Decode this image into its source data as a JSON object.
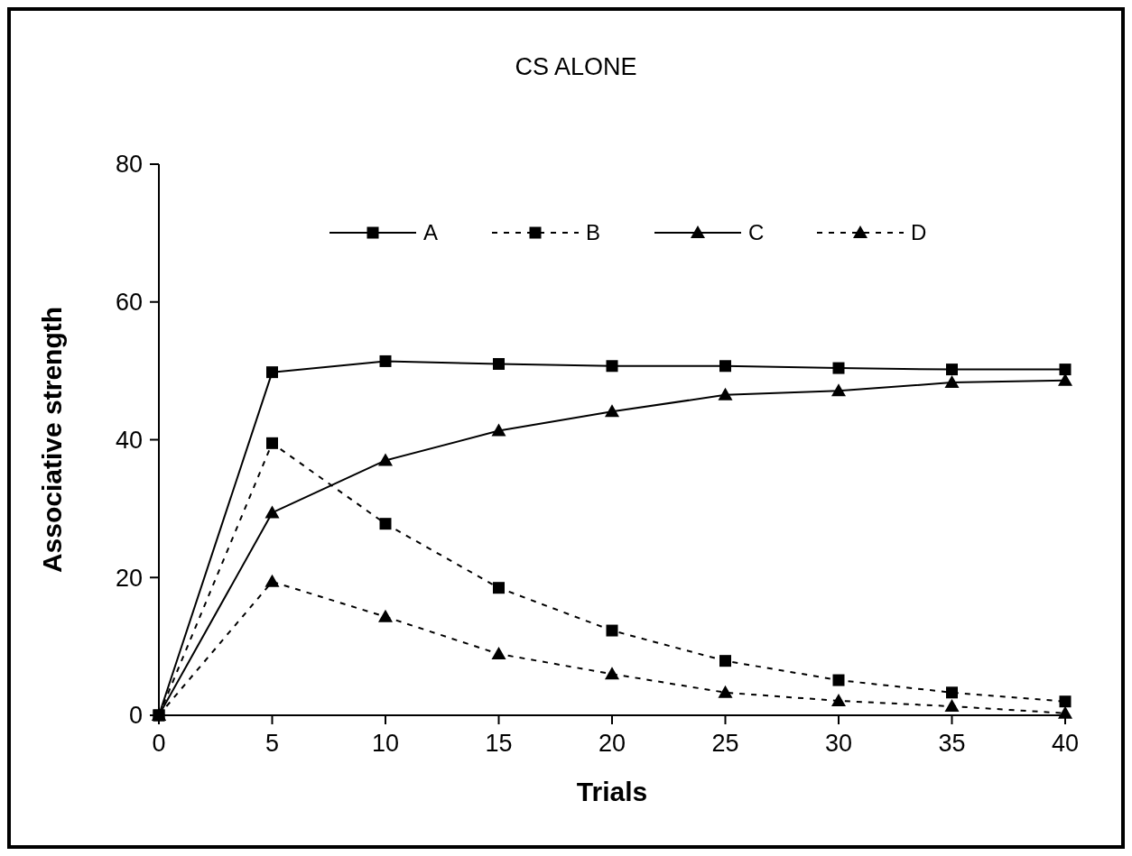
{
  "chart_data": {
    "type": "line",
    "title": "CS ALONE",
    "xlabel": "Trials",
    "ylabel": "Associative strength",
    "x": [
      0,
      5,
      10,
      15,
      20,
      25,
      30,
      35,
      40
    ],
    "series": [
      {
        "name": "A",
        "color": "#000000",
        "marker": "square",
        "line_style": "solid",
        "values": [
          0,
          49.8,
          51.4,
          51.0,
          50.7,
          50.7,
          50.4,
          50.2,
          50.2
        ]
      },
      {
        "name": "B",
        "color": "#000000",
        "marker": "square",
        "line_style": "dotted",
        "values": [
          0,
          39.5,
          27.8,
          18.5,
          12.3,
          7.9,
          5.1,
          3.3,
          2.0
        ]
      },
      {
        "name": "C",
        "color": "#000000",
        "marker": "triangle",
        "line_style": "solid",
        "values": [
          0,
          29.4,
          37.0,
          41.3,
          44.1,
          46.5,
          47.1,
          48.3,
          48.6
        ]
      },
      {
        "name": "D",
        "color": "#000000",
        "marker": "triangle",
        "line_style": "dotted",
        "values": [
          0,
          19.4,
          14.3,
          8.9,
          6.0,
          3.3,
          2.1,
          1.3,
          0.3
        ]
      }
    ],
    "xlim": [
      0,
      40
    ],
    "xticks": [
      0,
      5,
      10,
      15,
      20,
      25,
      30,
      35,
      40
    ],
    "ylim": [
      0,
      80
    ],
    "yticks": [
      0,
      20,
      40,
      60,
      80
    ],
    "grid": false,
    "legend": "top"
  }
}
